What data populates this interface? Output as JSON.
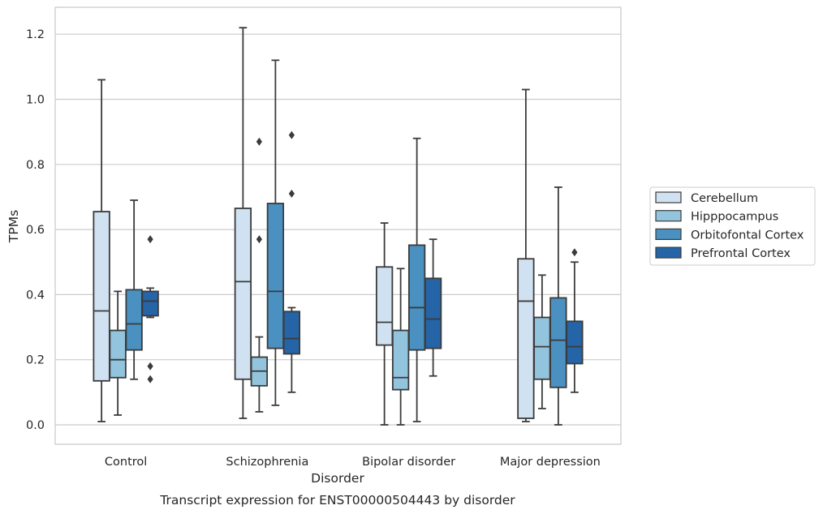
{
  "caption": "Transcript expression for ENST00000504443 by disorder",
  "chart_data": {
    "type": "boxplot",
    "xlabel": "Disorder",
    "ylabel": "TPMs",
    "ylim": [
      -0.06,
      1.285
    ],
    "yticks": [
      0.0,
      0.2,
      0.4,
      0.6,
      0.8,
      1.0,
      1.2
    ],
    "ytick_labels": [
      "0.0",
      "0.2",
      "0.4",
      "0.6",
      "0.8",
      "1.0",
      "1.2"
    ],
    "grid": "horizontal",
    "legend_position": "right",
    "categories": [
      "Control",
      "Schizophrenia",
      "Bipolar disorder",
      "Major depression"
    ],
    "series": [
      {
        "name": "Cerebellum",
        "color": "#d0e1f1",
        "boxes": [
          {
            "whislo": 0.01,
            "q1": 0.135,
            "med": 0.35,
            "q3": 0.655,
            "whishi": 1.06,
            "fliers": []
          },
          {
            "whislo": 0.02,
            "q1": 0.14,
            "med": 0.44,
            "q3": 0.665,
            "whishi": 1.22,
            "fliers": []
          },
          {
            "whislo": 0.0,
            "q1": 0.245,
            "med": 0.315,
            "q3": 0.485,
            "whishi": 0.62,
            "fliers": []
          },
          {
            "whislo": 0.01,
            "q1": 0.02,
            "med": 0.38,
            "q3": 0.51,
            "whishi": 1.03,
            "fliers": []
          }
        ]
      },
      {
        "name": "Hipppocampus",
        "color": "#93c4de",
        "boxes": [
          {
            "whislo": 0.03,
            "q1": 0.145,
            "med": 0.2,
            "q3": 0.29,
            "whishi": 0.41,
            "fliers": []
          },
          {
            "whislo": 0.04,
            "q1": 0.12,
            "med": 0.165,
            "q3": 0.208,
            "whishi": 0.27,
            "fliers": [
              0.57,
              0.87
            ]
          },
          {
            "whislo": 0.0,
            "q1": 0.108,
            "med": 0.145,
            "q3": 0.29,
            "whishi": 0.48,
            "fliers": []
          },
          {
            "whislo": 0.05,
            "q1": 0.14,
            "med": 0.24,
            "q3": 0.33,
            "whishi": 0.46,
            "fliers": []
          }
        ]
      },
      {
        "name": "Orbitofontal Cortex",
        "color": "#4a91c2",
        "boxes": [
          {
            "whislo": 0.14,
            "q1": 0.23,
            "med": 0.31,
            "q3": 0.415,
            "whishi": 0.69,
            "fliers": []
          },
          {
            "whislo": 0.06,
            "q1": 0.235,
            "med": 0.41,
            "q3": 0.68,
            "whishi": 1.12,
            "fliers": []
          },
          {
            "whislo": 0.01,
            "q1": 0.23,
            "med": 0.36,
            "q3": 0.552,
            "whishi": 0.88,
            "fliers": []
          },
          {
            "whislo": 0.0,
            "q1": 0.115,
            "med": 0.26,
            "q3": 0.39,
            "whishi": 0.73,
            "fliers": []
          }
        ]
      },
      {
        "name": "Prefrontal Cortex",
        "color": "#2464a7",
        "boxes": [
          {
            "whislo": 0.33,
            "q1": 0.335,
            "med": 0.38,
            "q3": 0.41,
            "whishi": 0.42,
            "fliers": [
              0.14,
              0.18,
              0.57
            ]
          },
          {
            "whislo": 0.1,
            "q1": 0.218,
            "med": 0.265,
            "q3": 0.348,
            "whishi": 0.36,
            "fliers": [
              0.71,
              0.89
            ]
          },
          {
            "whislo": 0.15,
            "q1": 0.235,
            "med": 0.325,
            "q3": 0.45,
            "whishi": 0.57,
            "fliers": []
          },
          {
            "whislo": 0.1,
            "q1": 0.188,
            "med": 0.24,
            "q3": 0.318,
            "whishi": 0.5,
            "fliers": [
              0.53
            ]
          }
        ]
      }
    ]
  }
}
